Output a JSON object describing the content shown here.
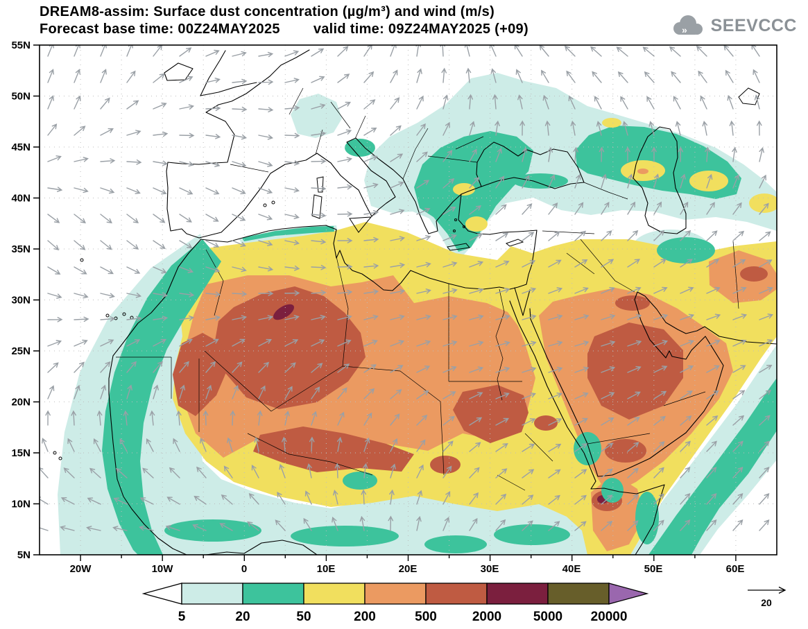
{
  "header": {
    "title": "DREAM8-assim: Surface dust concentration (µg/m³) and wind (m/s)",
    "base_time": "Forecast base time: 00Z24MAY2025",
    "valid_time": "valid time: 09Z24MAY2025 (+09)",
    "logo_text": "SEEVCCC"
  },
  "axes": {
    "lat_ticks": [
      "55N",
      "50N",
      "45N",
      "40N",
      "35N",
      "30N",
      "25N",
      "20N",
      "15N",
      "10N",
      "5N"
    ],
    "lon_ticks": [
      "20W",
      "10W",
      "0",
      "10E",
      "20E",
      "30E",
      "40E",
      "50E",
      "60E"
    ]
  },
  "colorbar": {
    "boundary_labels": [
      "5",
      "20",
      "50",
      "200",
      "500",
      "2000",
      "5000",
      "20000"
    ],
    "segment_colors": [
      "#ffffff",
      "#cdece7",
      "#3dc39c",
      "#f1df5e",
      "#eb9a61",
      "#bf5b42",
      "#7b1f3e",
      "#675e2a",
      "#9a67ae"
    ]
  },
  "wind_legend": {
    "reference_value": "20"
  }
}
